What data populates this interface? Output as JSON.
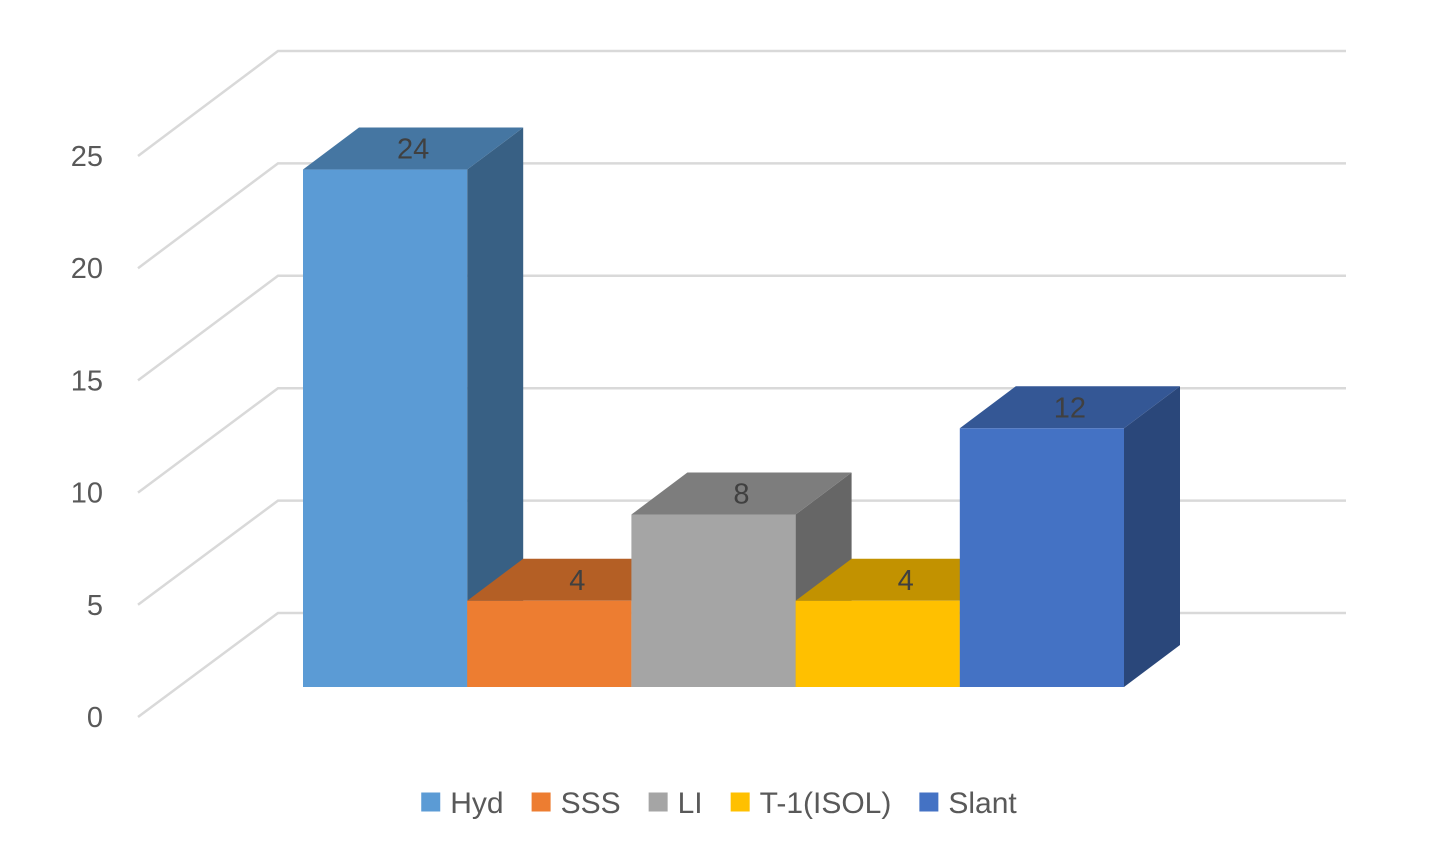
{
  "chart_data": {
    "type": "bar",
    "title": "",
    "xlabel": "",
    "ylabel": "",
    "ylim": [
      0,
      25
    ],
    "yticks": [
      0,
      5,
      10,
      15,
      20,
      25
    ],
    "grid": true,
    "legend_position": "bottom",
    "three_d": true,
    "series": [
      {
        "name": "Hyd",
        "value": 24,
        "color": "#5b9bd5"
      },
      {
        "name": "SSS",
        "value": 4,
        "color": "#ed7d31"
      },
      {
        "name": "LI",
        "value": 8,
        "color": "#a5a5a5"
      },
      {
        "name": "T-1(ISOL)",
        "value": 4,
        "color": "#ffc000"
      },
      {
        "name": "Slant",
        "value": 12,
        "color": "#4472c4"
      }
    ]
  }
}
